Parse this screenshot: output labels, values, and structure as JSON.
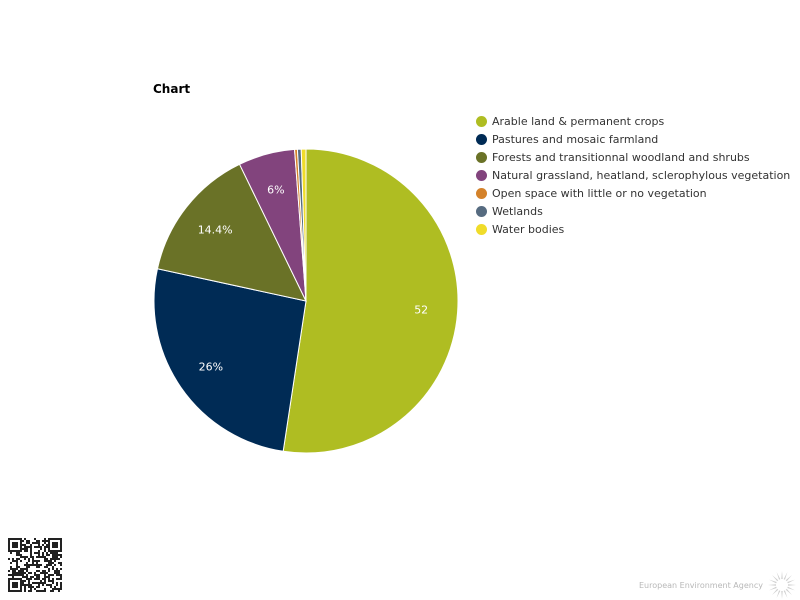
{
  "chart_data": {
    "type": "pie",
    "title": "Chart",
    "categories": [
      "Arable land & permanent crops",
      "Pastures and mosaic farmland",
      "Forests and transitionnal woodland and shrubs",
      "Natural grassland, heatland, sclerophylous vegetation",
      "Open space with little or no vegetation",
      "Wetlands",
      "Water bodies"
    ],
    "values": [
      52.4,
      26,
      14.4,
      6,
      0.3,
      0.4,
      0.5
    ],
    "data_labels": [
      "52",
      "26%",
      "14.4%",
      "6%",
      "",
      "",
      ""
    ],
    "colors": [
      "#afbd22",
      "#002b55",
      "#6a7227",
      "#82447d",
      "#d4822a",
      "#566b80",
      "#f0dc2a"
    ],
    "legend_position": "right"
  },
  "footer": {
    "agency": "European Environment Agency"
  }
}
